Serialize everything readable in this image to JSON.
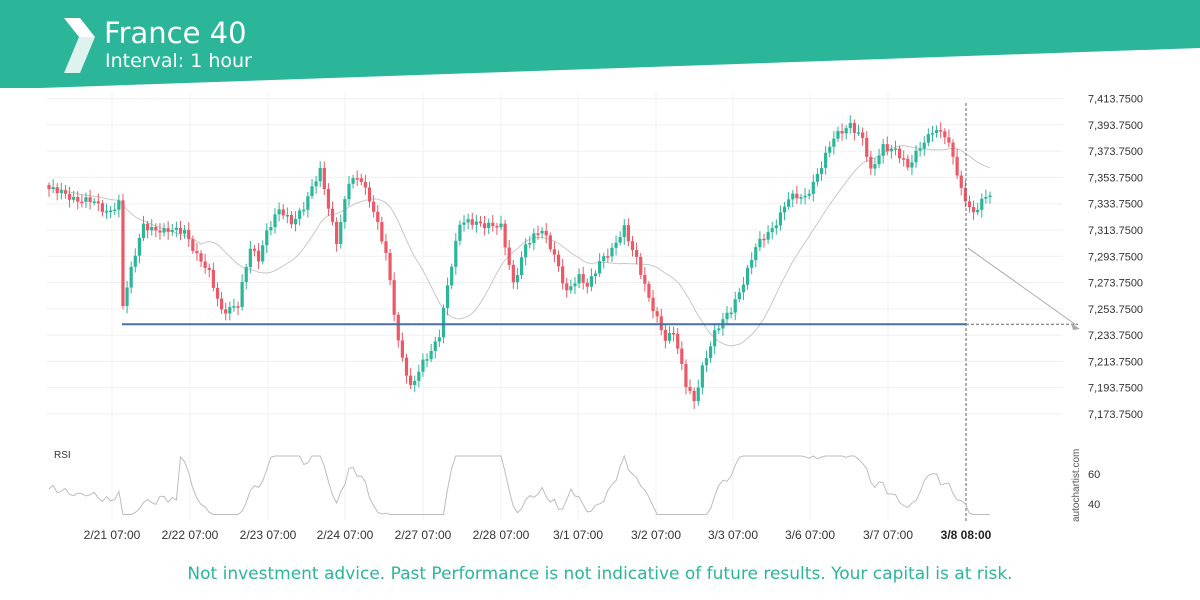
{
  "header": {
    "title": "France 40",
    "subtitle": "Interval: 1 hour",
    "background_color": "#2bb69a",
    "logo_icon": "autochartist-logo-icon"
  },
  "footer": {
    "disclaimer": "Not investment advice. Past Performance is not indicative of future results. Your capital is at risk."
  },
  "brand": "autochartist.com",
  "chart_data": [
    {
      "type": "candlestick",
      "price_axis": {
        "range": [
          7160,
          7418
        ],
        "ticks": [
          "7,413.7500",
          "7,393.7500",
          "7,373.7500",
          "7,353.7500",
          "7,333.7500",
          "7,313.7500",
          "7,293.7500",
          "7,273.7500",
          "7,253.7500",
          "7,233.7500",
          "7,213.7500",
          "7,193.7500",
          "7,173.7500"
        ]
      },
      "time_axis": {
        "ticks": [
          "2/21 07:00",
          "2/22 07:00",
          "2/23 07:00",
          "2/24 07:00",
          "2/27 07:00",
          "2/28 07:00",
          "3/1 07:00",
          "3/2 07:00",
          "3/3 07:00",
          "3/6 07:00",
          "3/7 07:00",
          "3/8 08:00"
        ],
        "current_label": "3/8 08:00"
      },
      "support_level": 7242,
      "projection": {
        "from": 7300,
        "to": 7240
      },
      "colors": {
        "up": "#2bb69a",
        "down": "#ec5866",
        "support": "#4a6fa5",
        "moving_average": "#c8c8c8"
      },
      "anchors": [
        [
          0,
          7345
        ],
        [
          6,
          7338
        ],
        [
          10,
          7336
        ],
        [
          14,
          7327
        ],
        [
          17,
          7335
        ],
        [
          18,
          7257
        ],
        [
          21,
          7295
        ],
        [
          23,
          7318
        ],
        [
          28,
          7312
        ],
        [
          33,
          7314
        ],
        [
          36,
          7294
        ],
        [
          39,
          7280
        ],
        [
          42,
          7253
        ],
        [
          46,
          7256
        ],
        [
          49,
          7300
        ],
        [
          51,
          7293
        ],
        [
          53,
          7313
        ],
        [
          56,
          7328
        ],
        [
          59,
          7320
        ],
        [
          62,
          7332
        ],
        [
          66,
          7358
        ],
        [
          70,
          7306
        ],
        [
          73,
          7350
        ],
        [
          76,
          7352
        ],
        [
          79,
          7330
        ],
        [
          82,
          7295
        ],
        [
          85,
          7228
        ],
        [
          88,
          7195
        ],
        [
          91,
          7212
        ],
        [
          93,
          7220
        ],
        [
          95,
          7235
        ],
        [
          97,
          7273
        ],
        [
          100,
          7318
        ],
        [
          104,
          7320
        ],
        [
          107,
          7318
        ],
        [
          110,
          7315
        ],
        [
          113,
          7273
        ],
        [
          116,
          7303
        ],
        [
          120,
          7313
        ],
        [
          123,
          7296
        ],
        [
          126,
          7266
        ],
        [
          129,
          7277
        ],
        [
          131,
          7272
        ],
        [
          134,
          7290
        ],
        [
          137,
          7297
        ],
        [
          140,
          7316
        ],
        [
          143,
          7292
        ],
        [
          146,
          7260
        ],
        [
          150,
          7232
        ],
        [
          152,
          7237
        ],
        [
          155,
          7195
        ],
        [
          157,
          7183
        ],
        [
          159,
          7210
        ],
        [
          162,
          7235
        ],
        [
          166,
          7253
        ],
        [
          169,
          7275
        ],
        [
          172,
          7300
        ],
        [
          176,
          7315
        ],
        [
          180,
          7338
        ],
        [
          184,
          7338
        ],
        [
          187,
          7357
        ],
        [
          191,
          7383
        ],
        [
          195,
          7395
        ],
        [
          198,
          7383
        ],
        [
          200,
          7357
        ],
        [
          203,
          7378
        ],
        [
          206,
          7375
        ],
        [
          209,
          7360
        ],
        [
          212,
          7378
        ],
        [
          215,
          7390
        ],
        [
          218,
          7385
        ],
        [
          220,
          7370
        ],
        [
          222,
          7345
        ],
        [
          225,
          7325
        ],
        [
          227,
          7335
        ],
        [
          229,
          7340
        ]
      ]
    },
    {
      "type": "line",
      "label": "RSI",
      "ticks": [
        "60",
        "40"
      ],
      "range": [
        30,
        75
      ]
    }
  ]
}
